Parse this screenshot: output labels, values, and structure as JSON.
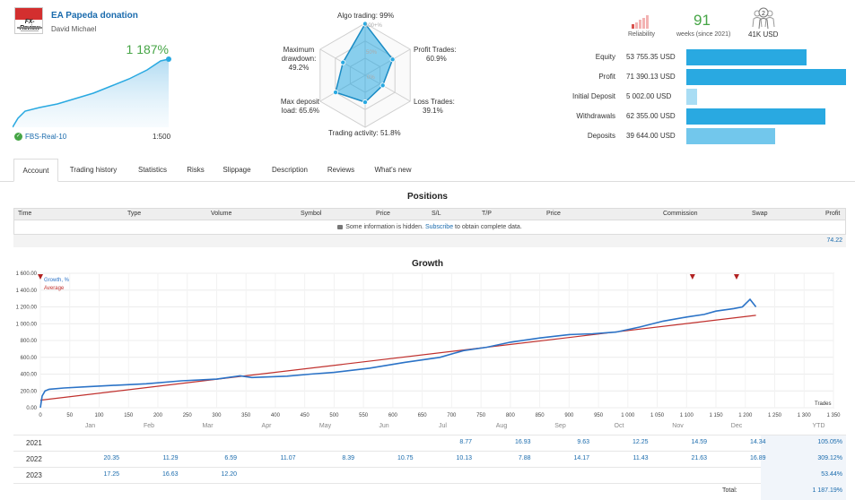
{
  "account": {
    "title": "EA Papeda donation",
    "author": "David Michael",
    "growth": "1 187%",
    "broker": "FBS-Real-10",
    "leverage": "1:500",
    "logo_text": "FX-Review"
  },
  "radar": {
    "algo": "Algo trading: 99%",
    "profit_trades": "Profit Trades:",
    "profit_trades_val": "60.9%",
    "loss_trades": "Loss Trades:",
    "loss_trades_val": "39.1%",
    "activity": "Trading activity: 51.8%",
    "max_deposit": "Max deposit",
    "max_deposit_val": "load: 65.6%",
    "max_dd": "Maximum",
    "max_dd2": "drawdown:",
    "max_dd_val": "49.2%",
    "ring_100": "100+%",
    "ring_50": "50%",
    "ring_0": "0%",
    "values": [
      0.99,
      0.609,
      0.391,
      0.518,
      0.656,
      0.492
    ]
  },
  "summary": {
    "reliability_label": "Reliability",
    "reliability_level": 0.2,
    "weeks": "91",
    "weeks_label": "weeks (since 2021)",
    "subscribers_count": "2",
    "funds": "41K USD"
  },
  "stats": [
    {
      "label": "Equity",
      "value": "53 755.35 USD",
      "amount": 53755.35,
      "color": "#29a9e1"
    },
    {
      "label": "Profit",
      "value": "71 390.13 USD",
      "amount": 71390.13,
      "color": "#29a9e1"
    },
    {
      "label": "Initial Deposit",
      "value": "5 002.00 USD",
      "amount": 5002.0,
      "color": "#a9ddf4"
    },
    {
      "label": "Withdrawals",
      "value": "62 355.00 USD",
      "amount": 62355.0,
      "color": "#29a9e1"
    },
    {
      "label": "Deposits",
      "value": "39 644.00 USD",
      "amount": 39644.0,
      "color": "#72c7ec"
    }
  ],
  "tabs": [
    "Account",
    "Trading history",
    "Statistics",
    "Risks",
    "Slippage",
    "Description",
    "Reviews",
    "What's new"
  ],
  "positions": {
    "title": "Positions",
    "columns": [
      "Time",
      "Type",
      "Volume",
      "Symbol",
      "Price",
      "S/L",
      "T/P",
      "Price",
      "Commission",
      "Swap",
      "Profit"
    ],
    "info_pre": "Some information is hidden.",
    "info_link": "Subscribe",
    "info_post": "to obtain complete data.",
    "total": "74.22"
  },
  "growth": {
    "title": "Growth",
    "legend_growth": "Growth, %",
    "legend_average": "Average",
    "xlabel": "Trades",
    "colors": {
      "growth": "#2b73c7",
      "average": "#c0302d"
    }
  },
  "chart_data": {
    "type": "line",
    "title": "Growth",
    "xlabel": "Trades",
    "ylabel": "",
    "xlim": [
      0,
      1350
    ],
    "ylim": [
      0,
      1600
    ],
    "y_ticks": [
      "0.00",
      "200.00",
      "400.00",
      "600.00",
      "800.00",
      "1 000.00",
      "1 200.00",
      "1 400.00",
      "1 600.00"
    ],
    "x_ticks": [
      "0",
      "50",
      "100",
      "150",
      "200",
      "250",
      "300",
      "350",
      "400",
      "450",
      "500",
      "550",
      "600",
      "650",
      "700",
      "750",
      "800",
      "850",
      "900",
      "950",
      "1 000",
      "1 050",
      "1 100",
      "1 150",
      "1 200",
      "1 250",
      "1 300",
      "1 350"
    ],
    "series": [
      {
        "name": "Growth, %",
        "x": [
          0,
          3,
          8,
          15,
          40,
          80,
          120,
          180,
          240,
          300,
          340,
          360,
          420,
          460,
          500,
          560,
          620,
          680,
          720,
          760,
          800,
          850,
          900,
          940,
          980,
          1020,
          1060,
          1100,
          1130,
          1150,
          1180,
          1195,
          1208,
          1218
        ],
        "y": [
          0,
          140,
          200,
          220,
          235,
          250,
          265,
          285,
          320,
          340,
          380,
          360,
          375,
          400,
          420,
          470,
          540,
          600,
          680,
          720,
          780,
          830,
          870,
          880,
          900,
          960,
          1030,
          1080,
          1110,
          1150,
          1180,
          1200,
          1290,
          1200
        ]
      },
      {
        "name": "Average",
        "x": [
          0,
          1218
        ],
        "y": [
          90,
          1100
        ]
      }
    ],
    "markers_x": [
      0,
      1110,
      1185
    ]
  },
  "year_table": {
    "months": [
      "Jan",
      "Feb",
      "Mar",
      "Apr",
      "May",
      "Jun",
      "Jul",
      "Aug",
      "Sep",
      "Oct",
      "Nov",
      "Dec",
      "YTD"
    ],
    "rows": [
      {
        "year": "2021",
        "values": [
          "",
          "",
          "",
          "",
          "",
          "",
          "8.77",
          "16.93",
          "9.63",
          "12.25",
          "14.59",
          "14.34"
        ],
        "ytd": "105.05%"
      },
      {
        "year": "2022",
        "values": [
          "20.35",
          "11.29",
          "6.59",
          "11.07",
          "8.39",
          "10.75",
          "10.13",
          "7.88",
          "14.17",
          "11.43",
          "21.63",
          "16.89"
        ],
        "ytd": "309.12%"
      },
      {
        "year": "2023",
        "values": [
          "17.25",
          "16.63",
          "12.20",
          "",
          "",
          "",
          "",
          "",
          "",
          "",
          "",
          ""
        ],
        "ytd": "53.44%"
      }
    ],
    "total_label": "Total:",
    "total": "1 187.19%"
  }
}
